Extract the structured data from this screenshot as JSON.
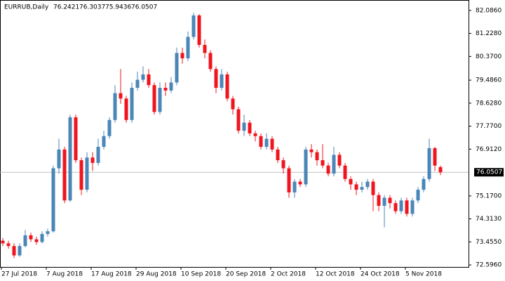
{
  "chart_data": {
    "type": "candlestick",
    "title": "EURRUB,Daily",
    "x": [
      "27 Jul 2018",
      null,
      null,
      null,
      null,
      null,
      null,
      null,
      "7 Aug 2018",
      null,
      null,
      null,
      null,
      null,
      null,
      null,
      "17 Aug 2018",
      null,
      null,
      null,
      null,
      null,
      null,
      null,
      "29 Aug 2018",
      null,
      null,
      null,
      null,
      null,
      null,
      null,
      "10 Sep 2018",
      null,
      null,
      null,
      null,
      null,
      null,
      null,
      "20 Sep 2018",
      null,
      null,
      null,
      null,
      null,
      null,
      null,
      "2 Oct 2018",
      null,
      null,
      null,
      null,
      null,
      null,
      null,
      "12 Oct 2018",
      null,
      null,
      null,
      null,
      null,
      null,
      null,
      "24 Oct 2018",
      null,
      null,
      null,
      null,
      null,
      null,
      null,
      "5 Nov 2018",
      null,
      null,
      null,
      null,
      null,
      null
    ],
    "open": [
      73.5,
      73.4,
      73.3,
      72.95,
      73.3,
      73.7,
      73.55,
      73.45,
      73.75,
      73.85,
      76.2,
      76.9,
      75.0,
      78.1,
      76.5,
      75.4,
      76.6,
      76.4,
      77.0,
      77.4,
      78.0,
      79.0,
      78.8,
      78.0,
      79.2,
      79.5,
      79.7,
      79.3,
      78.3,
      79.2,
      79.1,
      79.4,
      80.5,
      80.3,
      81.1,
      81.9,
      80.8,
      80.5,
      79.9,
      79.2,
      79.7,
      78.8,
      78.4,
      77.6,
      77.9,
      77.5,
      77.4,
      77.0,
      77.3,
      76.9,
      76.5,
      76.2,
      75.3,
      75.7,
      75.6,
      76.9,
      76.8,
      76.5,
      76.3,
      76.0,
      76.7,
      76.3,
      75.8,
      75.6,
      75.4,
      75.5,
      75.7,
      75.2,
      74.8,
      75.1,
      74.9,
      74.6,
      75.0,
      74.5,
      75.0,
      75.4,
      75.8,
      76.95,
      76.2421
    ],
    "high": [
      73.6,
      73.5,
      73.4,
      73.4,
      73.9,
      73.8,
      73.65,
      73.85,
      73.95,
      76.3,
      77.3,
      77.0,
      78.2,
      78.2,
      76.6,
      76.8,
      76.8,
      77.3,
      77.6,
      78.1,
      79.3,
      79.9,
      78.9,
      79.4,
      79.8,
      80.0,
      79.9,
      79.4,
      79.4,
      79.4,
      79.6,
      80.7,
      80.7,
      81.3,
      82.0,
      81.95,
      81.0,
      80.6,
      80.0,
      79.9,
      79.8,
      78.9,
      78.5,
      78.2,
      78.0,
      77.6,
      77.5,
      77.5,
      77.4,
      77.0,
      76.6,
      76.3,
      75.8,
      75.8,
      77.0,
      77.1,
      76.9,
      77.1,
      76.4,
      77.0,
      76.8,
      76.4,
      75.9,
      75.7,
      75.7,
      75.8,
      75.8,
      75.3,
      75.2,
      75.2,
      75.0,
      75.1,
      75.1,
      75.1,
      75.5,
      75.9,
      77.3,
      77.0,
      76.3037
    ],
    "low": [
      73.3,
      73.2,
      72.85,
      72.9,
      73.25,
      73.45,
      73.35,
      73.4,
      73.65,
      73.8,
      76.0,
      74.9,
      74.95,
      76.4,
      75.2,
      75.3,
      76.1,
      76.3,
      76.9,
      77.3,
      77.9,
      78.6,
      77.9,
      77.9,
      79.1,
      79.4,
      79.2,
      78.2,
      78.2,
      78.9,
      79.0,
      79.3,
      80.1,
      80.2,
      81.0,
      80.7,
      80.3,
      79.8,
      79.0,
      79.1,
      78.7,
      78.2,
      77.5,
      77.4,
      77.4,
      77.2,
      76.9,
      76.9,
      76.8,
      76.4,
      76.0,
      75.1,
      75.1,
      75.5,
      75.5,
      76.6,
      76.3,
      76.2,
      75.9,
      75.9,
      76.2,
      75.7,
      75.4,
      75.2,
      75.3,
      75.4,
      74.6,
      74.6,
      74.0,
      74.7,
      74.5,
      74.5,
      74.4,
      74.4,
      74.9,
      75.3,
      75.7,
      76.1,
      75.9436
    ],
    "close": [
      73.4,
      73.3,
      72.95,
      73.3,
      73.7,
      73.55,
      73.45,
      73.75,
      73.85,
      76.2,
      76.9,
      75.0,
      78.1,
      76.5,
      75.4,
      76.6,
      76.4,
      77.0,
      77.4,
      78.0,
      79.0,
      78.8,
      78.0,
      79.2,
      79.5,
      79.7,
      79.3,
      78.3,
      79.2,
      79.1,
      79.4,
      80.5,
      80.3,
      81.1,
      81.9,
      80.8,
      80.5,
      79.9,
      79.2,
      79.7,
      78.8,
      78.4,
      77.6,
      77.9,
      77.5,
      77.4,
      77.0,
      77.3,
      76.9,
      76.5,
      76.2,
      75.3,
      75.7,
      75.6,
      76.9,
      76.8,
      76.5,
      76.3,
      76.0,
      76.7,
      76.3,
      75.8,
      75.6,
      75.4,
      75.5,
      75.7,
      75.2,
      74.8,
      75.1,
      74.9,
      74.6,
      75.0,
      74.5,
      75.0,
      75.4,
      75.8,
      76.95,
      76.3,
      76.0507
    ],
    "ylim": [
      72.52,
      82.37
    ],
    "yticks": [
      {
        "value": 72.596,
        "label": "72.5960"
      },
      {
        "value": 73.455,
        "label": "73.4550"
      },
      {
        "value": 74.313,
        "label": "74.3130"
      },
      {
        "value": 75.17,
        "label": "75.1700"
      },
      {
        "value": 76.912,
        "label": "76.9120"
      },
      {
        "value": 77.77,
        "label": "77.7700"
      },
      {
        "value": 78.628,
        "label": "78.6280"
      },
      {
        "value": 79.486,
        "label": "79.4860"
      },
      {
        "value": 80.37,
        "label": "80.3700"
      },
      {
        "value": 81.228,
        "label": "81.2280"
      },
      {
        "value": 82.086,
        "label": "82.0860"
      }
    ],
    "up_color": "#4a86b8",
    "down_color": "#f0141e",
    "price_line": true
  }
}
